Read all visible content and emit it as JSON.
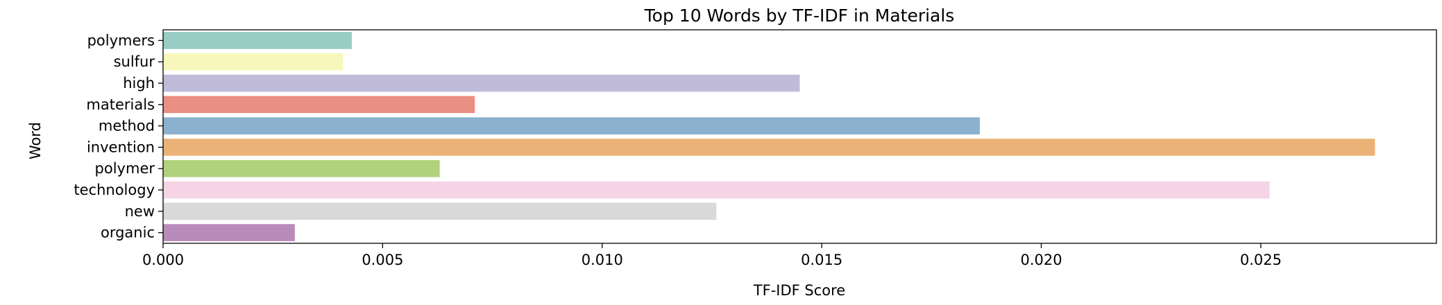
{
  "chart_data": {
    "type": "bar",
    "orientation": "horizontal",
    "title": "Top 10 Words by TF-IDF in Materials",
    "xlabel": "TF-IDF Score",
    "ylabel": "Word",
    "categories": [
      "polymers",
      "sulfur",
      "high",
      "materials",
      "method",
      "invention",
      "polymer",
      "technology",
      "new",
      "organic"
    ],
    "values": [
      0.0043,
      0.0041,
      0.0145,
      0.0071,
      0.0186,
      0.0276,
      0.0063,
      0.0252,
      0.0126,
      0.003
    ],
    "colors": [
      "#98cdc4",
      "#f7f7bb",
      "#bfbbd9",
      "#ea8f84",
      "#8bb1cf",
      "#eab277",
      "#b1d27d",
      "#f5d4e6",
      "#d9d9d9",
      "#b98bba"
    ],
    "xlim": [
      0,
      0.029
    ],
    "xticks": [
      "0.000",
      "0.005",
      "0.010",
      "0.015",
      "0.020",
      "0.025"
    ],
    "grid": false,
    "legend": false
  }
}
